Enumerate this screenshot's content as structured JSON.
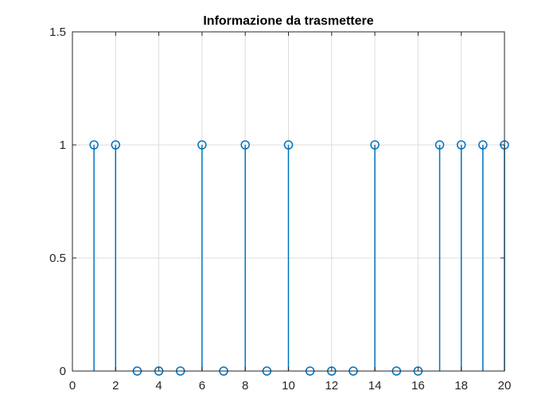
{
  "chart_data": {
    "type": "stem",
    "title": "Informazione da trasmettere",
    "xlabel": "",
    "ylabel": "",
    "xlim": [
      0,
      20
    ],
    "ylim": [
      0,
      1.5
    ],
    "xticks": [
      0,
      2,
      4,
      6,
      8,
      10,
      12,
      14,
      16,
      18,
      20
    ],
    "yticks": [
      0,
      0.5,
      1,
      1.5
    ],
    "xtick_labels": [
      "0",
      "2",
      "4",
      "6",
      "8",
      "10",
      "12",
      "14",
      "16",
      "18",
      "20"
    ],
    "ytick_labels": [
      "0",
      "0.5",
      "1",
      "1.5"
    ],
    "grid": true,
    "x": [
      1,
      2,
      3,
      4,
      5,
      6,
      7,
      8,
      9,
      10,
      11,
      12,
      13,
      14,
      15,
      16,
      17,
      18,
      19,
      20
    ],
    "y": [
      1,
      1,
      0,
      0,
      0,
      1,
      0,
      1,
      0,
      1,
      0,
      0,
      0,
      1,
      0,
      0,
      1,
      1,
      1,
      1
    ],
    "series_color": "#0072BD",
    "grid_color": "#dcdcdc",
    "axis_color": "#262626"
  }
}
